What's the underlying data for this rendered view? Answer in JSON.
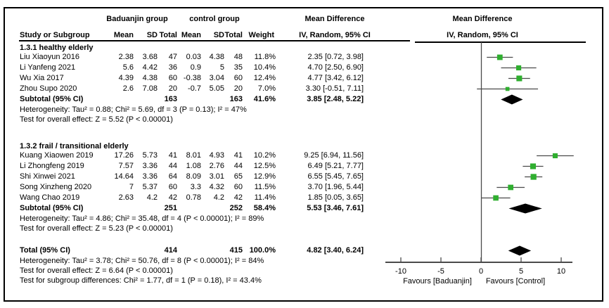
{
  "colors": {
    "marker_green": "#2FAE2F",
    "diamond_black": "#000000",
    "line_gray": "#4a4a4a",
    "text": "#000000",
    "background": "#ffffff",
    "border": "#000000"
  },
  "header": {
    "col_study": "Study or Subgroup",
    "group1_label": "Baduanjin group",
    "group2_label": "control group",
    "col_mean": "Mean",
    "col_sd": "SD",
    "col_total": "Total",
    "col_weight": "Weight",
    "md_label": "Mean Difference",
    "md_sub": "IV, Random, 95% CI"
  },
  "chart_data": {
    "type": "forest",
    "effect_measure": "Mean Difference",
    "method": "IV, Random, 95% CI",
    "axis": {
      "ticks": [
        -10,
        -5,
        0,
        5,
        10
      ],
      "min": -12,
      "max": 12,
      "left_label": "Favours [Baduanjin]",
      "right_label": "Favours [Control]"
    },
    "subgroups": [
      {
        "label": "1.3.1 healthy elderly",
        "studies": [
          {
            "name": "Liu Xiaoyun 2016",
            "mean1": "2.38",
            "sd1": "3.68",
            "n1": "47",
            "mean2": "0.03",
            "sd2": "4.38",
            "n2": "48",
            "weight": "11.8%",
            "est": 2.35,
            "lo": 0.72,
            "hi": 3.98,
            "ci_text": "2.35 [0.72, 3.98]"
          },
          {
            "name": "Li Yanfeng 2021",
            "mean1": "5.6",
            "sd1": "4.42",
            "n1": "36",
            "mean2": "0.9",
            "sd2": "5",
            "n2": "35",
            "weight": "10.4%",
            "est": 4.7,
            "lo": 2.5,
            "hi": 6.9,
            "ci_text": "4.70 [2.50, 6.90]"
          },
          {
            "name": "Wu Xia 2017",
            "mean1": "4.39",
            "sd1": "4.38",
            "n1": "60",
            "mean2": "-0.38",
            "sd2": "3.04",
            "n2": "60",
            "weight": "12.4%",
            "est": 4.77,
            "lo": 3.42,
            "hi": 6.12,
            "ci_text": "4.77 [3.42, 6.12]"
          },
          {
            "name": "Zhou Supo 2020",
            "mean1": "2.6",
            "sd1": "7.08",
            "n1": "20",
            "mean2": "-0.7",
            "sd2": "5.05",
            "n2": "20",
            "weight": "7.0%",
            "est": 3.3,
            "lo": -0.51,
            "hi": 7.11,
            "ci_text": "3.30 [-0.51, 7.11]"
          }
        ],
        "subtotal": {
          "label": "Subtotal (95% CI)",
          "n1": "163",
          "n2": "163",
          "weight": "41.6%",
          "est": 3.85,
          "lo": 2.48,
          "hi": 5.22,
          "ci_text": "3.85 [2.48, 5.22]"
        },
        "heterogeneity": "Heterogeneity: Tau² = 0.88; Chi² = 5.69, df = 3 (P = 0.13); I² = 47%",
        "overall_effect": "Test for overall effect: Z = 5.52 (P < 0.00001)"
      },
      {
        "label": "1.3.2 frail / transitional elderly",
        "studies": [
          {
            "name": "Kuang Xiaowen 2019",
            "mean1": "17.26",
            "sd1": "5.73",
            "n1": "41",
            "mean2": "8.01",
            "sd2": "4.93",
            "n2": "41",
            "weight": "10.2%",
            "est": 9.25,
            "lo": 6.94,
            "hi": 11.56,
            "ci_text": "9.25 [6.94, 11.56]"
          },
          {
            "name": "Li Zhongfeng 2019",
            "mean1": "7.57",
            "sd1": "3.36",
            "n1": "44",
            "mean2": "1.08",
            "sd2": "2.76",
            "n2": "44",
            "weight": "12.5%",
            "est": 6.49,
            "lo": 5.21,
            "hi": 7.77,
            "ci_text": "6.49 [5.21, 7.77]"
          },
          {
            "name": "Shi Xinwei 2021",
            "mean1": "14.64",
            "sd1": "3.36",
            "n1": "64",
            "mean2": "8.09",
            "sd2": "3.01",
            "n2": "65",
            "weight": "12.9%",
            "est": 6.55,
            "lo": 5.45,
            "hi": 7.65,
            "ci_text": "6.55 [5.45, 7.65]"
          },
          {
            "name": "Song Xinzheng 2020",
            "mean1": "7",
            "sd1": "5.37",
            "n1": "60",
            "mean2": "3.3",
            "sd2": "4.32",
            "n2": "60",
            "weight": "11.5%",
            "est": 3.7,
            "lo": 1.96,
            "hi": 5.44,
            "ci_text": "3.70 [1.96, 5.44]"
          },
          {
            "name": "Wang Chao 2019",
            "mean1": "2.63",
            "sd1": "4.2",
            "n1": "42",
            "mean2": "0.78",
            "sd2": "4.2",
            "n2": "42",
            "weight": "11.4%",
            "est": 1.85,
            "lo": 0.05,
            "hi": 3.65,
            "ci_text": "1.85 [0.05, 3.65]"
          }
        ],
        "subtotal": {
          "label": "Subtotal (95% CI)",
          "n1": "251",
          "n2": "252",
          "weight": "58.4%",
          "est": 5.53,
          "lo": 3.46,
          "hi": 7.61,
          "ci_text": "5.53 [3.46, 7.61]"
        },
        "heterogeneity": "Heterogeneity: Tau² = 4.86; Chi² = 35.48, df = 4 (P < 0.00001); I² = 89%",
        "overall_effect": "Test for overall effect: Z = 5.23 (P < 0.00001)"
      }
    ],
    "total": {
      "label": "Total (95% CI)",
      "n1": "414",
      "n2": "415",
      "weight": "100.0%",
      "est": 4.82,
      "lo": 3.4,
      "hi": 6.24,
      "ci_text": "4.82 [3.40, 6.24]"
    },
    "total_heterogeneity": "Heterogeneity: Tau² = 3.78; Chi² = 50.76, df = 8 (P < 0.00001); I² = 84%",
    "total_overall_effect": "Test for overall effect: Z = 6.64 (P < 0.00001)",
    "subgroup_differences": "Test for subgroup differences: Chi² = 1.77, df = 1 (P = 0.18), I² = 43.4%"
  }
}
